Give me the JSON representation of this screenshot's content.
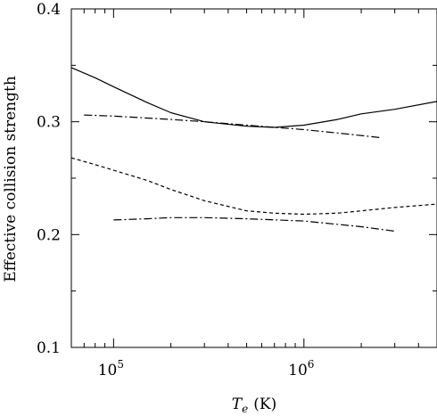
{
  "chart_data": {
    "type": "line",
    "xlabel": "T_e (K)",
    "xlabel_main": "T",
    "xlabel_sub": "e",
    "xlabel_unit": "(K)",
    "ylabel": "Effective collision strength",
    "xscale": "log",
    "xlim": [
      60000,
      5000000
    ],
    "ylim": [
      0.1,
      0.4
    ],
    "grid": false,
    "y_ticks": [
      {
        "value": 0.1,
        "label": "0.1"
      },
      {
        "value": 0.2,
        "label": "0.2"
      },
      {
        "value": 0.3,
        "label": "0.3"
      },
      {
        "value": 0.4,
        "label": "0.4"
      }
    ],
    "x_ticks": [
      {
        "value": 100000,
        "base": "10",
        "exp": "5"
      },
      {
        "value": 1000000,
        "base": "10",
        "exp": "6"
      }
    ],
    "series": [
      {
        "style": "solid",
        "x": [
          60000,
          80000,
          100000,
          150000,
          200000,
          300000,
          500000,
          700000,
          1000000,
          1500000,
          2000000,
          3000000,
          5000000
        ],
        "y": [
          0.348,
          0.339,
          0.331,
          0.317,
          0.308,
          0.3,
          0.296,
          0.295,
          0.297,
          0.302,
          0.307,
          0.311,
          0.318
        ]
      },
      {
        "style": "dashdot",
        "x": [
          70000,
          100000,
          200000,
          300000,
          500000,
          1000000,
          1500000,
          2500000
        ],
        "y": [
          0.306,
          0.305,
          0.302,
          0.3,
          0.297,
          0.293,
          0.29,
          0.286
        ]
      },
      {
        "style": "dashed",
        "x": [
          60000,
          80000,
          100000,
          150000,
          200000,
          300000,
          500000,
          700000,
          1000000,
          1500000,
          2000000,
          3000000,
          5000000
        ],
        "y": [
          0.268,
          0.262,
          0.257,
          0.248,
          0.24,
          0.23,
          0.221,
          0.219,
          0.218,
          0.219,
          0.221,
          0.224,
          0.227
        ]
      },
      {
        "style": "dashdot",
        "x": [
          100000,
          150000,
          200000,
          300000,
          500000,
          1000000,
          2000000,
          3000000
        ],
        "y": [
          0.213,
          0.214,
          0.215,
          0.215,
          0.214,
          0.212,
          0.207,
          0.203
        ]
      }
    ]
  }
}
